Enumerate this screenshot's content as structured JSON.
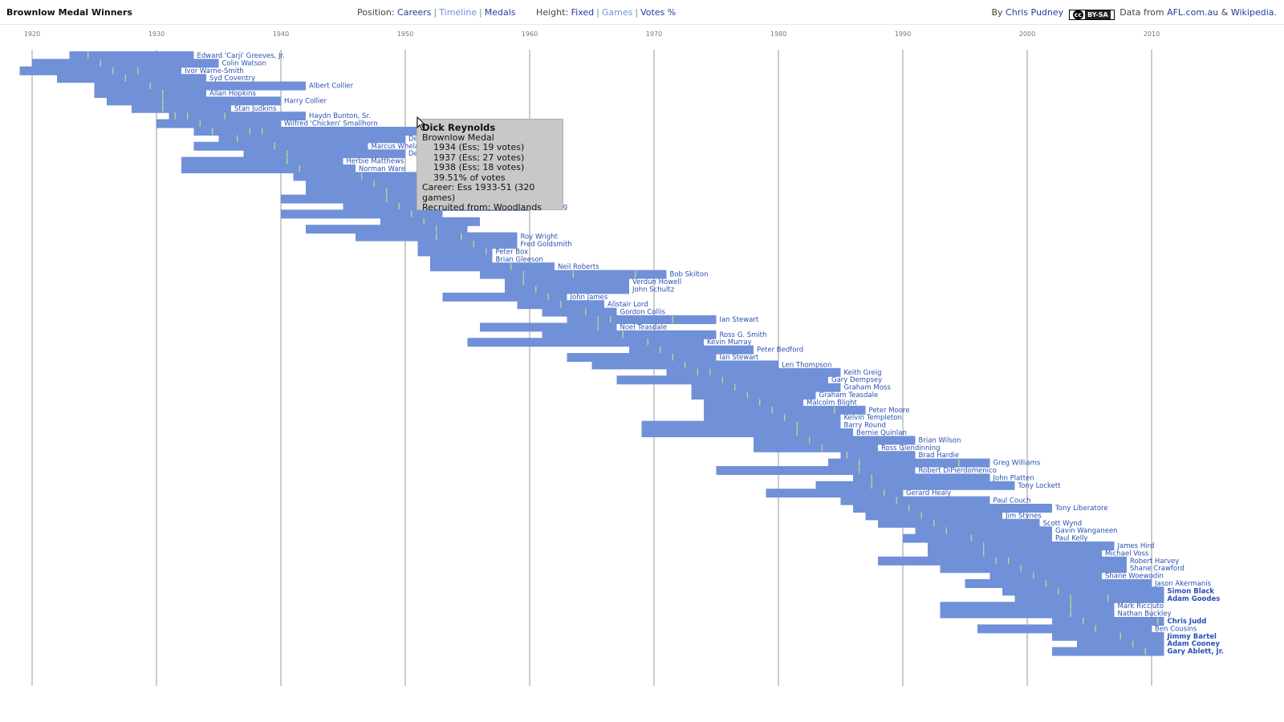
{
  "header": {
    "title": "Brownlow Medal Winners",
    "position_label": "Position:",
    "position_options": [
      "Careers",
      "Timeline",
      "Medals"
    ],
    "height_label": "Height:",
    "height_options": [
      "Fixed",
      "Games",
      "Votes %"
    ],
    "by_label": "By",
    "author": "Chris Pudney",
    "license_badge": "BY-SA",
    "data_label": "Data from",
    "source1": "AFL.com.au",
    "and_label": "&",
    "source2": "Wikipedia."
  },
  "tooltip": {
    "name": "Dick Reynolds",
    "award": "Brownlow Medal",
    "wins": [
      "1934 (Ess; 19 votes)",
      "1937 (Ess; 27 votes)",
      "1938 (Ess; 18 votes)"
    ],
    "votes_pct": "39.51% of votes",
    "career": "Career: Ess 1933-51 (320 games)",
    "recruited": "Recruited from: Woodlands"
  },
  "colors": {
    "bar": "#7090d8",
    "medal_tick": "#c8e080",
    "label": "#2a4fb5",
    "grid": "#9a9a9a"
  },
  "chart_data": {
    "type": "bar",
    "title": "Brownlow Medal Winners",
    "xlim": [
      1920,
      2012
    ],
    "x_ticks": [
      1920,
      1930,
      1940,
      1950,
      1960,
      1970,
      1980,
      1990,
      2000,
      2010
    ],
    "bars": [
      {
        "name": "Edward 'Carji' Greeves, Jr.",
        "start": 1923,
        "end": 1933,
        "medals": [
          1924
        ]
      },
      {
        "name": "Colin Watson",
        "start": 1920,
        "end": 1935,
        "medals": [
          1925
        ]
      },
      {
        "name": "Ivor Warne-Smith",
        "start": 1919,
        "end": 1932,
        "medals": [
          1926,
          1928
        ]
      },
      {
        "name": "Syd Coventry",
        "start": 1922,
        "end": 1934,
        "medals": [
          1927
        ]
      },
      {
        "name": "Albert Collier",
        "start": 1925,
        "end": 1942,
        "medals": [
          1929
        ]
      },
      {
        "name": "Allan Hopkins",
        "start": 1925,
        "end": 1934,
        "medals": [
          1930
        ]
      },
      {
        "name": "Harry Collier",
        "start": 1926,
        "end": 1940,
        "medals": [
          1930
        ]
      },
      {
        "name": "Stan Judkins",
        "start": 1928,
        "end": 1936,
        "medals": [
          1930
        ]
      },
      {
        "name": "Haydn Bunton, Sr.",
        "start": 1931,
        "end": 1942,
        "medals": [
          1931,
          1932,
          1935
        ]
      },
      {
        "name": "Wilfred 'Chicken' Smallhorn",
        "start": 1930,
        "end": 1940,
        "medals": [
          1933
        ]
      },
      {
        "name": "Dick Reynolds",
        "start": 1933,
        "end": 1951,
        "medals": [
          1934,
          1937,
          1938
        ]
      },
      {
        "name": "Denis Ryan",
        "start": 1935,
        "end": 1950,
        "medals": [
          1936
        ]
      },
      {
        "name": "Marcus Whelan",
        "start": 1933,
        "end": 1947,
        "medals": [
          1939
        ]
      },
      {
        "name": "Des Fothergill",
        "start": 1937,
        "end": 1950,
        "medals": [
          1940
        ]
      },
      {
        "name": "Herbie Matthews",
        "start": 1932,
        "end": 1945,
        "medals": [
          1940
        ]
      },
      {
        "name": "Norman Ware",
        "start": 1932,
        "end": 1946,
        "medals": [
          1941
        ]
      },
      {
        "name": "",
        "start": 1941,
        "end": 1951,
        "medals": [
          1946
        ]
      },
      {
        "name": "",
        "start": 1942,
        "end": 1952,
        "medals": [
          1947
        ]
      },
      {
        "name": "",
        "start": 1942,
        "end": 1953,
        "medals": [
          1948
        ]
      },
      {
        "name": "",
        "start": 1940,
        "end": 1952,
        "medals": [
          1948
        ]
      },
      {
        "name": "Ron Clegg",
        "start": 1945,
        "end": 1960,
        "medals": [
          1949
        ]
      },
      {
        "name": "",
        "start": 1940,
        "end": 1953,
        "medals": [
          1950
        ]
      },
      {
        "name": "",
        "start": 1948,
        "end": 1956,
        "medals": [
          1951
        ]
      },
      {
        "name": "",
        "start": 1942,
        "end": 1955,
        "medals": [
          1952
        ]
      },
      {
        "name": "Roy Wright",
        "start": 1946,
        "end": 1959,
        "medals": [
          1952,
          1954
        ]
      },
      {
        "name": "Fred Goldsmith",
        "start": 1951,
        "end": 1959,
        "medals": [
          1955
        ]
      },
      {
        "name": "Peter Box",
        "start": 1951,
        "end": 1957,
        "medals": [
          1956
        ]
      },
      {
        "name": "Brian Gleeson",
        "start": 1952,
        "end": 1957,
        "medals": [
          1957
        ]
      },
      {
        "name": "Neil Roberts",
        "start": 1952,
        "end": 1962,
        "medals": [
          1958
        ]
      },
      {
        "name": "Bob Skilton",
        "start": 1956,
        "end": 1971,
        "medals": [
          1959,
          1963,
          1968
        ]
      },
      {
        "name": "Verdun Howell",
        "start": 1958,
        "end": 1968,
        "medals": [
          1959
        ]
      },
      {
        "name": "John Schultz",
        "start": 1958,
        "end": 1968,
        "medals": [
          1960
        ]
      },
      {
        "name": "John James",
        "start": 1953,
        "end": 1963,
        "medals": [
          1961
        ]
      },
      {
        "name": "Alistair Lord",
        "start": 1959,
        "end": 1966,
        "medals": [
          1962
        ]
      },
      {
        "name": "Gordon Collis",
        "start": 1961,
        "end": 1967,
        "medals": [
          1964
        ]
      },
      {
        "name": "Ian Stewart",
        "start": 1963,
        "end": 1975,
        "medals": [
          1965,
          1966,
          1971
        ]
      },
      {
        "name": "Noel Teasdale",
        "start": 1956,
        "end": 1967,
        "medals": [
          1965
        ]
      },
      {
        "name": "Ross G. Smith",
        "start": 1961,
        "end": 1975,
        "medals": [
          1967
        ]
      },
      {
        "name": "Kevin Murray",
        "start": 1955,
        "end": 1974,
        "medals": [
          1969
        ]
      },
      {
        "name": "Peter Bedford",
        "start": 1968,
        "end": 1978,
        "medals": [
          1970
        ]
      },
      {
        "name": "Ian Stewart",
        "start": 1963,
        "end": 1975,
        "medals": [
          1971
        ]
      },
      {
        "name": "Len Thompson",
        "start": 1965,
        "end": 1980,
        "medals": [
          1972
        ]
      },
      {
        "name": "Keith Greig",
        "start": 1971,
        "end": 1985,
        "medals": [
          1973,
          1974
        ]
      },
      {
        "name": "Gary Dempsey",
        "start": 1967,
        "end": 1984,
        "medals": [
          1975
        ]
      },
      {
        "name": "Graham Moss",
        "start": 1973,
        "end": 1985,
        "medals": [
          1976
        ]
      },
      {
        "name": "Graham Teasdale",
        "start": 1973,
        "end": 1983,
        "medals": [
          1977
        ]
      },
      {
        "name": "Malcolm Blight",
        "start": 1974,
        "end": 1982,
        "medals": [
          1978
        ]
      },
      {
        "name": "Peter Moore",
        "start": 1974,
        "end": 1987,
        "medals": [
          1979,
          1984
        ]
      },
      {
        "name": "Kelvin Templeton",
        "start": 1974,
        "end": 1985,
        "medals": [
          1980
        ]
      },
      {
        "name": "Barry Round",
        "start": 1969,
        "end": 1985,
        "medals": [
          1981
        ]
      },
      {
        "name": "Bernie Quinlan",
        "start": 1969,
        "end": 1986,
        "medals": [
          1981
        ]
      },
      {
        "name": "Brian Wilson",
        "start": 1978,
        "end": 1991,
        "medals": [
          1982
        ]
      },
      {
        "name": "Ross Glendinning",
        "start": 1978,
        "end": 1988,
        "medals": [
          1983
        ]
      },
      {
        "name": "Brad Hardie",
        "start": 1985,
        "end": 1991,
        "medals": [
          1985
        ]
      },
      {
        "name": "Greg Williams",
        "start": 1984,
        "end": 1997,
        "medals": [
          1986,
          1994
        ]
      },
      {
        "name": "Robert DiPierdomenico",
        "start": 1975,
        "end": 1991,
        "medals": [
          1986
        ]
      },
      {
        "name": "John Platten",
        "start": 1986,
        "end": 1997,
        "medals": [
          1987
        ]
      },
      {
        "name": "Tony Lockett",
        "start": 1983,
        "end": 1999,
        "medals": [
          1987
        ]
      },
      {
        "name": "Gerard Healy",
        "start": 1979,
        "end": 1990,
        "medals": [
          1988
        ]
      },
      {
        "name": "Paul Couch",
        "start": 1985,
        "end": 1997,
        "medals": [
          1989
        ]
      },
      {
        "name": "Tony Liberatore",
        "start": 1986,
        "end": 2002,
        "medals": [
          1990
        ]
      },
      {
        "name": "Jim Stynes",
        "start": 1987,
        "end": 1998,
        "medals": [
          1991
        ]
      },
      {
        "name": "Scott Wynd",
        "start": 1988,
        "end": 2001,
        "medals": [
          1992
        ]
      },
      {
        "name": "Gavin Wanganeen",
        "start": 1991,
        "end": 2002,
        "medals": [
          1993
        ]
      },
      {
        "name": "Paul Kelly",
        "start": 1990,
        "end": 2002,
        "medals": [
          1995
        ]
      },
      {
        "name": "James Hird",
        "start": 1992,
        "end": 2007,
        "medals": [
          1996
        ]
      },
      {
        "name": "Michael Voss",
        "start": 1992,
        "end": 2006,
        "medals": [
          1996
        ]
      },
      {
        "name": "Robert Harvey",
        "start": 1988,
        "end": 2008,
        "medals": [
          1997,
          1998
        ]
      },
      {
        "name": "Shane Crawford",
        "start": 1993,
        "end": 2008,
        "medals": [
          1999
        ]
      },
      {
        "name": "Shane Woewodin",
        "start": 1997,
        "end": 2006,
        "medals": [
          2000
        ]
      },
      {
        "name": "Jason Akermanis",
        "start": 1995,
        "end": 2010,
        "medals": [
          2001
        ]
      },
      {
        "name": "Simon Black",
        "start": 1998,
        "end": 2011,
        "medals": [
          2002
        ]
      },
      {
        "name": "Adam Goodes",
        "start": 1999,
        "end": 2011,
        "medals": [
          2003,
          2006
        ]
      },
      {
        "name": "Mark Ricciuto",
        "start": 1993,
        "end": 2007,
        "medals": [
          2003
        ]
      },
      {
        "name": "Nathan Buckley",
        "start": 1993,
        "end": 2007,
        "medals": [
          2003
        ]
      },
      {
        "name": "Chris Judd",
        "start": 2002,
        "end": 2011,
        "medals": [
          2004,
          2010
        ]
      },
      {
        "name": "Ben Cousins",
        "start": 1996,
        "end": 2010,
        "medals": [
          2005
        ]
      },
      {
        "name": "Jimmy Bartel",
        "start": 2002,
        "end": 2011,
        "medals": [
          2007
        ]
      },
      {
        "name": "Adam Cooney",
        "start": 2004,
        "end": 2011,
        "medals": [
          2008
        ]
      },
      {
        "name": "Gary Ablett, Jr.",
        "start": 2002,
        "end": 2011,
        "medals": [
          2009
        ]
      }
    ],
    "active_players": [
      "Simon Black",
      "Adam Goodes",
      "Chris Judd",
      "Jimmy Bartel",
      "Adam Cooney",
      "Gary Ablett, Jr."
    ]
  }
}
